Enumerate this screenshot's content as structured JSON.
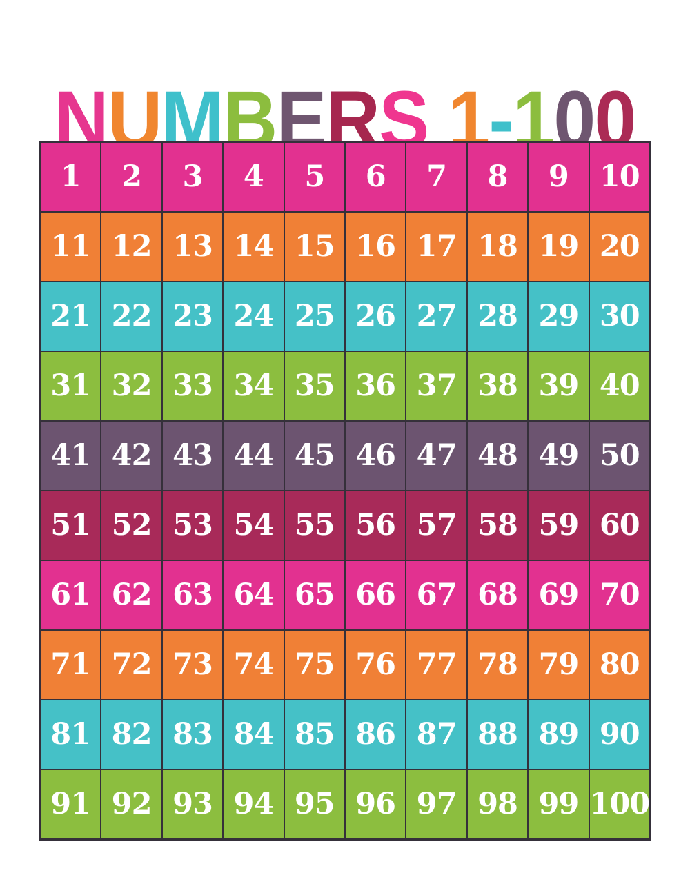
{
  "page": {
    "background": "#ffffff"
  },
  "title": {
    "text": "NUMBERS 1-100",
    "letters": [
      {
        "char": "N",
        "color": "#e6368f"
      },
      {
        "char": "U",
        "color": "#f0862f"
      },
      {
        "char": "M",
        "color": "#3fc0cb"
      },
      {
        "char": "B",
        "color": "#8cbd3e"
      },
      {
        "char": "E",
        "color": "#6f5670"
      },
      {
        "char": "R",
        "color": "#a6274f"
      },
      {
        "char": "S",
        "color": "#ef368f"
      },
      {
        "char": " "
      },
      {
        "char": "1",
        "color": "#f0862f"
      },
      {
        "char": "-",
        "color": "#3fc0cb"
      },
      {
        "char": "1",
        "color": "#8cbd3e"
      },
      {
        "char": "0",
        "color": "#6f5670"
      },
      {
        "char": "0",
        "color": "#ab2b55"
      }
    ]
  },
  "grid": {
    "rows": 10,
    "cols": 10,
    "border_color": "#35303a",
    "number_color": "#ffffff",
    "row_colors": [
      "#e23190",
      "#f08036",
      "#45c1c7",
      "#8cbe3f",
      "#6c5470",
      "#a82a59",
      "#e23190",
      "#f08036",
      "#45c1c7",
      "#8cbe3f"
    ],
    "numbers": [
      1,
      2,
      3,
      4,
      5,
      6,
      7,
      8,
      9,
      10,
      11,
      12,
      13,
      14,
      15,
      16,
      17,
      18,
      19,
      20,
      21,
      22,
      23,
      24,
      25,
      26,
      27,
      28,
      29,
      30,
      31,
      32,
      33,
      34,
      35,
      36,
      37,
      38,
      39,
      40,
      41,
      42,
      43,
      44,
      45,
      46,
      47,
      48,
      49,
      50,
      51,
      52,
      53,
      54,
      55,
      56,
      57,
      58,
      59,
      60,
      61,
      62,
      63,
      64,
      65,
      66,
      67,
      68,
      69,
      70,
      71,
      72,
      73,
      74,
      75,
      76,
      77,
      78,
      79,
      80,
      81,
      82,
      83,
      84,
      85,
      86,
      87,
      88,
      89,
      90,
      91,
      92,
      93,
      94,
      95,
      96,
      97,
      98,
      99,
      100
    ]
  }
}
